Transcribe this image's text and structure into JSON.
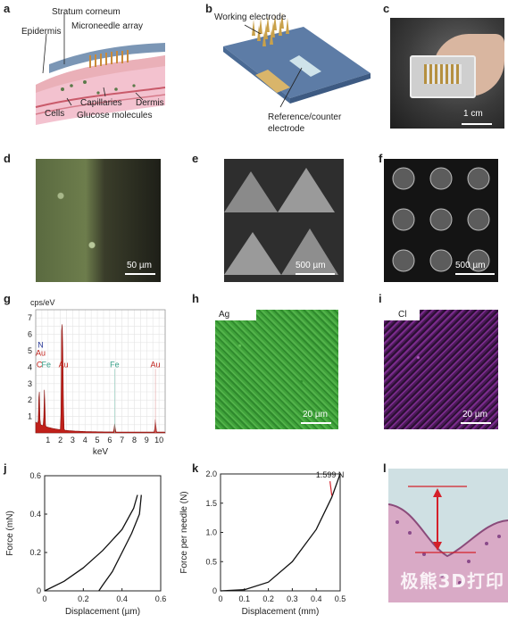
{
  "panels": {
    "a": {
      "label": "a",
      "texts": {
        "stratum": "Stratum corneum",
        "epidermis": "Epidermis",
        "microneedle": "Microneedle array",
        "capillaries": "Capillaries",
        "dermis": "Dermis",
        "cells": "Cells",
        "glucose": "Glucose molecules"
      }
    },
    "b": {
      "label": "b",
      "texts": {
        "working": "Working electrode",
        "ref1": "Reference/counter",
        "ref2": "electrode"
      }
    },
    "c": {
      "label": "c",
      "scale": "1 cm"
    },
    "d": {
      "label": "d",
      "scale": "50 µm"
    },
    "e": {
      "label": "e",
      "scale": "500 µm"
    },
    "f": {
      "label": "f",
      "scale": "500 µm"
    },
    "g": {
      "label": "g"
    },
    "h": {
      "label": "h",
      "element": "Ag",
      "scale": "20 µm"
    },
    "i": {
      "label": "i",
      "element": "Cl",
      "scale": "20 µm"
    },
    "j": {
      "label": "j"
    },
    "k": {
      "label": "k"
    },
    "l": {
      "label": "l"
    }
  },
  "watermark": "极熊3D打印",
  "colors": {
    "ag_green": "#3fa23a",
    "cl_purple": "#7a2b8c",
    "eds_red": "#c0201a",
    "tissue_pink": "#d9aac6"
  },
  "chart_data": [
    {
      "type": "bar",
      "panel": "g",
      "ylabel": "cps/eV",
      "xlabel": "keV",
      "xlim": [
        0,
        10.5
      ],
      "ylim": [
        0,
        7.5
      ],
      "xticks": [
        "1",
        "2",
        "3",
        "4",
        "5",
        "6",
        "7",
        "8",
        "9",
        "10"
      ],
      "yticks": [
        "1",
        "2",
        "3",
        "4",
        "5",
        "6",
        "7"
      ],
      "peaks": [
        {
          "x": 0.28,
          "y": 2.3
        },
        {
          "x": 0.71,
          "y": 2.3
        },
        {
          "x": 2.12,
          "y": 7.0
        },
        {
          "x": 2.2,
          "y": 4.2
        },
        {
          "x": 6.4,
          "y": 0.5
        },
        {
          "x": 9.71,
          "y": 0.8
        }
      ],
      "peak_labels": [
        {
          "text": "N",
          "x": 0.4,
          "y": 5.2,
          "color": "#2a3a9a"
        },
        {
          "text": "Au",
          "x": 0.4,
          "y": 4.7,
          "color": "#c0201a"
        },
        {
          "text": "C",
          "x": 0.3,
          "y": 4.0,
          "color": "#c0201a"
        },
        {
          "text": "Fe",
          "x": 0.85,
          "y": 4.0,
          "color": "#3aa08a"
        },
        {
          "text": "Au",
          "x": 2.25,
          "y": 4.0,
          "color": "#c0201a"
        },
        {
          "text": "Fe",
          "x": 6.4,
          "y": 4.0,
          "color": "#3aa08a"
        },
        {
          "text": "Au",
          "x": 9.7,
          "y": 4.0,
          "color": "#c0201a"
        }
      ]
    },
    {
      "type": "line",
      "panel": "j",
      "xlabel": "Displacement (µm)",
      "ylabel": "Force (mN)",
      "xlim": [
        0,
        0.6
      ],
      "ylim": [
        0,
        0.6
      ],
      "xticks": [
        "0",
        "0.2",
        "0.4",
        "0.6"
      ],
      "yticks": [
        "0",
        "0.2",
        "0.4",
        "0.6"
      ],
      "series": [
        {
          "values": [
            [
              0,
              0
            ],
            [
              0.1,
              0.05
            ],
            [
              0.2,
              0.12
            ],
            [
              0.3,
              0.21
            ],
            [
              0.4,
              0.32
            ],
            [
              0.46,
              0.43
            ],
            [
              0.48,
              0.5
            ]
          ]
        },
        {
          "values": [
            [
              0.5,
              0.5
            ],
            [
              0.49,
              0.4
            ],
            [
              0.45,
              0.3
            ],
            [
              0.4,
              0.2
            ],
            [
              0.35,
              0.1
            ],
            [
              0.3,
              0.03
            ],
            [
              0.28,
              0
            ]
          ]
        }
      ]
    },
    {
      "type": "line",
      "panel": "k",
      "xlabel": "Displacement (mm)",
      "ylabel": "Force per needle (N)",
      "xlim": [
        0,
        0.5
      ],
      "ylim": [
        0,
        2.0
      ],
      "xticks": [
        "0",
        "0.1",
        "0.2",
        "0.3",
        "0.4",
        "0.5"
      ],
      "yticks": [
        "0",
        "0.5",
        "1.0",
        "1.5",
        "2.0"
      ],
      "annotation": {
        "text": "1.599 N",
        "x": 0.465,
        "y": 1.6
      },
      "series": [
        {
          "values": [
            [
              0,
              0
            ],
            [
              0.1,
              0.02
            ],
            [
              0.2,
              0.15
            ],
            [
              0.3,
              0.5
            ],
            [
              0.4,
              1.05
            ],
            [
              0.465,
              1.6
            ],
            [
              0.5,
              2.0
            ]
          ]
        }
      ]
    }
  ]
}
